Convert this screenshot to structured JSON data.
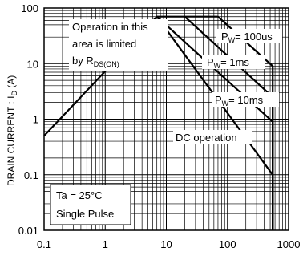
{
  "chart_data": {
    "type": "line",
    "title": "",
    "xlabel": "",
    "ylabel": "DRAIN CURRENT : I",
    "ylabel_sub": "D",
    "ylabel_unit": " (A)",
    "x_scale": "log",
    "y_scale": "log",
    "xlim": [
      0.1,
      1000
    ],
    "ylim": [
      0.01,
      100
    ],
    "grid": true,
    "x_tick_labels": [
      "0.1",
      "1",
      "10",
      "100",
      "1000"
    ],
    "y_tick_labels": [
      "0.01",
      "0.1",
      "1",
      "10",
      "100"
    ],
    "series": [
      {
        "name": "PW= 100us",
        "x": [
          0.1,
          7,
          70,
          550,
          550
        ],
        "y": [
          0.5,
          70,
          70,
          9,
          0.01
        ]
      },
      {
        "name": "PW= 1ms",
        "x": [
          20,
          550,
          550
        ],
        "y": [
          70,
          2.5,
          0.01
        ]
      },
      {
        "name": "PW= 10ms",
        "x": [
          7,
          550,
          550
        ],
        "y": [
          70,
          0.9,
          0.01
        ]
      },
      {
        "name": "DC operation",
        "x": [
          7,
          550,
          550
        ],
        "y": [
          70,
          0.1,
          0.01
        ]
      }
    ],
    "annotations": {
      "rds_line1": "Operation in this",
      "rds_line2": "area is limited",
      "rds_line3": "by  R",
      "rds_sub": "DS(ON)",
      "pw100_pre": "P",
      "pw100_sub": "W",
      "pw100_post": "= 100us",
      "pw1_pre": "P",
      "pw1_sub": "W",
      "pw1_post": "= 1ms",
      "pw10_pre": "P",
      "pw10_sub": "W",
      "pw10_post": "= 10ms",
      "dc": "DC operation",
      "cond_line1": "Ta = 25°C",
      "cond_line2": "Single Pulse"
    }
  }
}
